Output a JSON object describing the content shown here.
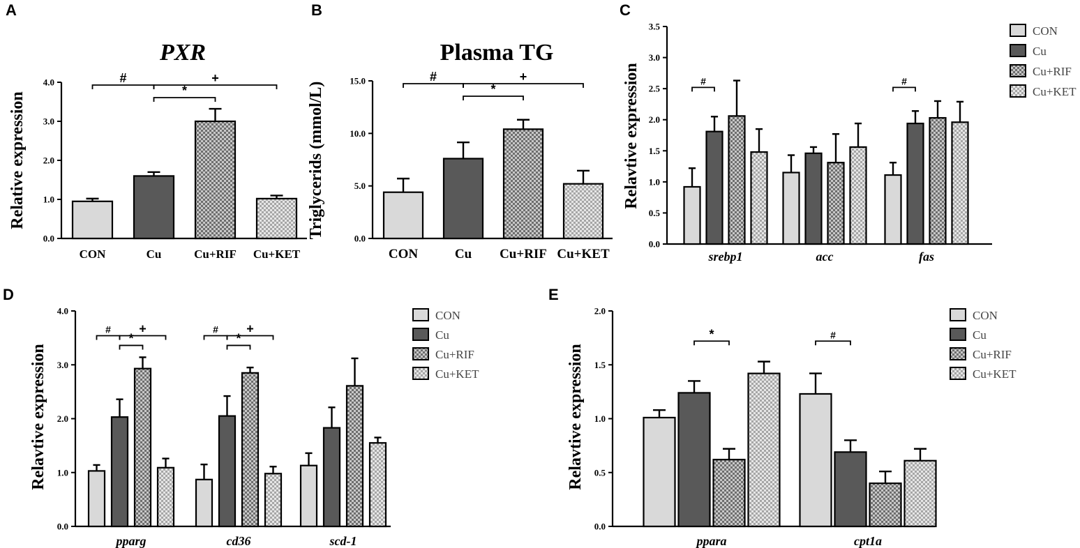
{
  "figure": {
    "legend_labels": [
      "CON",
      "Cu",
      "Cu+RIF",
      "Cu+KET"
    ]
  },
  "colors": {
    "CON": "#d9d9d9",
    "Cu": "#595959",
    "Cu+RIF": "#a0a0a0",
    "Cu+KET": "#c4c4c4",
    "axis": "#000000"
  },
  "chart_data": [
    {
      "panel": "A",
      "type": "bar",
      "title": "PXR",
      "title_italic": true,
      "ylabel": "Relative expression",
      "ylim": [
        0,
        4
      ],
      "yticks": [
        "0.0",
        "1.0",
        "2.0",
        "3.0",
        "4.0"
      ],
      "categories": [
        "CON",
        "Cu",
        "Cu+RIF",
        "Cu+KET"
      ],
      "values": [
        0.95,
        1.6,
        3.0,
        1.02
      ],
      "errors": [
        0.07,
        0.1,
        0.32,
        0.08
      ],
      "significance": [
        {
          "symbol": "#",
          "from": 0,
          "to": 1
        },
        {
          "symbol": "*",
          "from": 1,
          "to": 2
        },
        {
          "symbol": "+",
          "from": 1,
          "to": 3
        }
      ]
    },
    {
      "panel": "B",
      "type": "bar",
      "title": "Plasma TG",
      "title_italic": false,
      "ylabel": "Triglycerids (mmol/L)",
      "ylim": [
        0,
        15
      ],
      "yticks": [
        "0.0",
        "5.0",
        "10.0",
        "15.0"
      ],
      "categories": [
        "CON",
        "Cu",
        "Cu+RIF",
        "Cu+KET"
      ],
      "values": [
        4.4,
        7.6,
        10.4,
        5.2
      ],
      "errors": [
        1.3,
        1.55,
        0.9,
        1.25
      ],
      "significance": [
        {
          "symbol": "#",
          "from": 0,
          "to": 1
        },
        {
          "symbol": "*",
          "from": 1,
          "to": 2
        },
        {
          "symbol": "+",
          "from": 1,
          "to": 3
        }
      ]
    },
    {
      "panel": "C",
      "type": "bar",
      "title": "",
      "ylabel": "Relavtive expression",
      "ylim": [
        0,
        3.5
      ],
      "yticks": [
        "0.0",
        "0.5",
        "1.0",
        "1.5",
        "2.0",
        "2.5",
        "3.0",
        "3.5"
      ],
      "groups": [
        "srebp1",
        "acc",
        "fas"
      ],
      "series": [
        {
          "name": "CON",
          "values": [
            0.92,
            1.15,
            1.11
          ],
          "errors": [
            0.3,
            0.28,
            0.2
          ]
        },
        {
          "name": "Cu",
          "values": [
            1.81,
            1.46,
            1.94
          ],
          "errors": [
            0.24,
            0.1,
            0.2
          ]
        },
        {
          "name": "Cu+RIF",
          "values": [
            2.06,
            1.31,
            2.03
          ],
          "errors": [
            0.57,
            0.46,
            0.27
          ]
        },
        {
          "name": "Cu+KET",
          "values": [
            1.48,
            1.56,
            1.96
          ],
          "errors": [
            0.37,
            0.38,
            0.33
          ]
        }
      ],
      "significance": [
        {
          "symbol": "#",
          "group": 0,
          "from": 0,
          "to": 1
        },
        {
          "symbol": "#",
          "group": 2,
          "from": 0,
          "to": 1
        }
      ]
    },
    {
      "panel": "D",
      "type": "bar",
      "title": "",
      "ylabel": "Relavtive expression",
      "ylim": [
        0,
        4
      ],
      "yticks": [
        "0.0",
        "1.0",
        "2.0",
        "3.0",
        "4.0"
      ],
      "groups": [
        "pparg",
        "cd36",
        "scd-1"
      ],
      "series": [
        {
          "name": "CON",
          "values": [
            1.03,
            0.87,
            1.13
          ],
          "errors": [
            0.11,
            0.28,
            0.23
          ]
        },
        {
          "name": "Cu",
          "values": [
            2.03,
            2.05,
            1.83
          ],
          "errors": [
            0.33,
            0.37,
            0.38
          ]
        },
        {
          "name": "Cu+RIF",
          "values": [
            2.93,
            2.85,
            2.61
          ],
          "errors": [
            0.21,
            0.1,
            0.51
          ]
        },
        {
          "name": "Cu+KET",
          "values": [
            1.09,
            0.98,
            1.55
          ],
          "errors": [
            0.17,
            0.13,
            0.1
          ]
        }
      ],
      "significance": [
        {
          "symbol": "#",
          "group": 0,
          "from": 0,
          "to": 1
        },
        {
          "symbol": "*",
          "group": 0,
          "from": 1,
          "to": 2
        },
        {
          "symbol": "+",
          "group": 0,
          "from": 1,
          "to": 3
        },
        {
          "symbol": "#",
          "group": 1,
          "from": 0,
          "to": 1
        },
        {
          "symbol": "*",
          "group": 1,
          "from": 1,
          "to": 2
        },
        {
          "symbol": "+",
          "group": 1,
          "from": 1,
          "to": 3
        }
      ]
    },
    {
      "panel": "E",
      "type": "bar",
      "title": "",
      "ylabel": "Relavtive expression",
      "ylim": [
        0,
        2
      ],
      "yticks": [
        "0.0",
        "0.5",
        "1.0",
        "1.5",
        "2.0"
      ],
      "groups": [
        "ppara",
        "cpt1a"
      ],
      "series": [
        {
          "name": "CON",
          "values": [
            1.01,
            1.23
          ],
          "errors": [
            0.07,
            0.19
          ]
        },
        {
          "name": "Cu",
          "values": [
            1.24,
            0.69
          ],
          "errors": [
            0.11,
            0.11
          ]
        },
        {
          "name": "Cu+RIF",
          "values": [
            0.62,
            0.4
          ],
          "errors": [
            0.1,
            0.11
          ]
        },
        {
          "name": "Cu+KET",
          "values": [
            1.42,
            0.61
          ],
          "errors": [
            0.11,
            0.11
          ]
        }
      ],
      "significance": [
        {
          "symbol": "*",
          "group": 0,
          "from": 1,
          "to": 2
        },
        {
          "symbol": "#",
          "group": 1,
          "from": 0,
          "to": 1
        }
      ]
    }
  ]
}
